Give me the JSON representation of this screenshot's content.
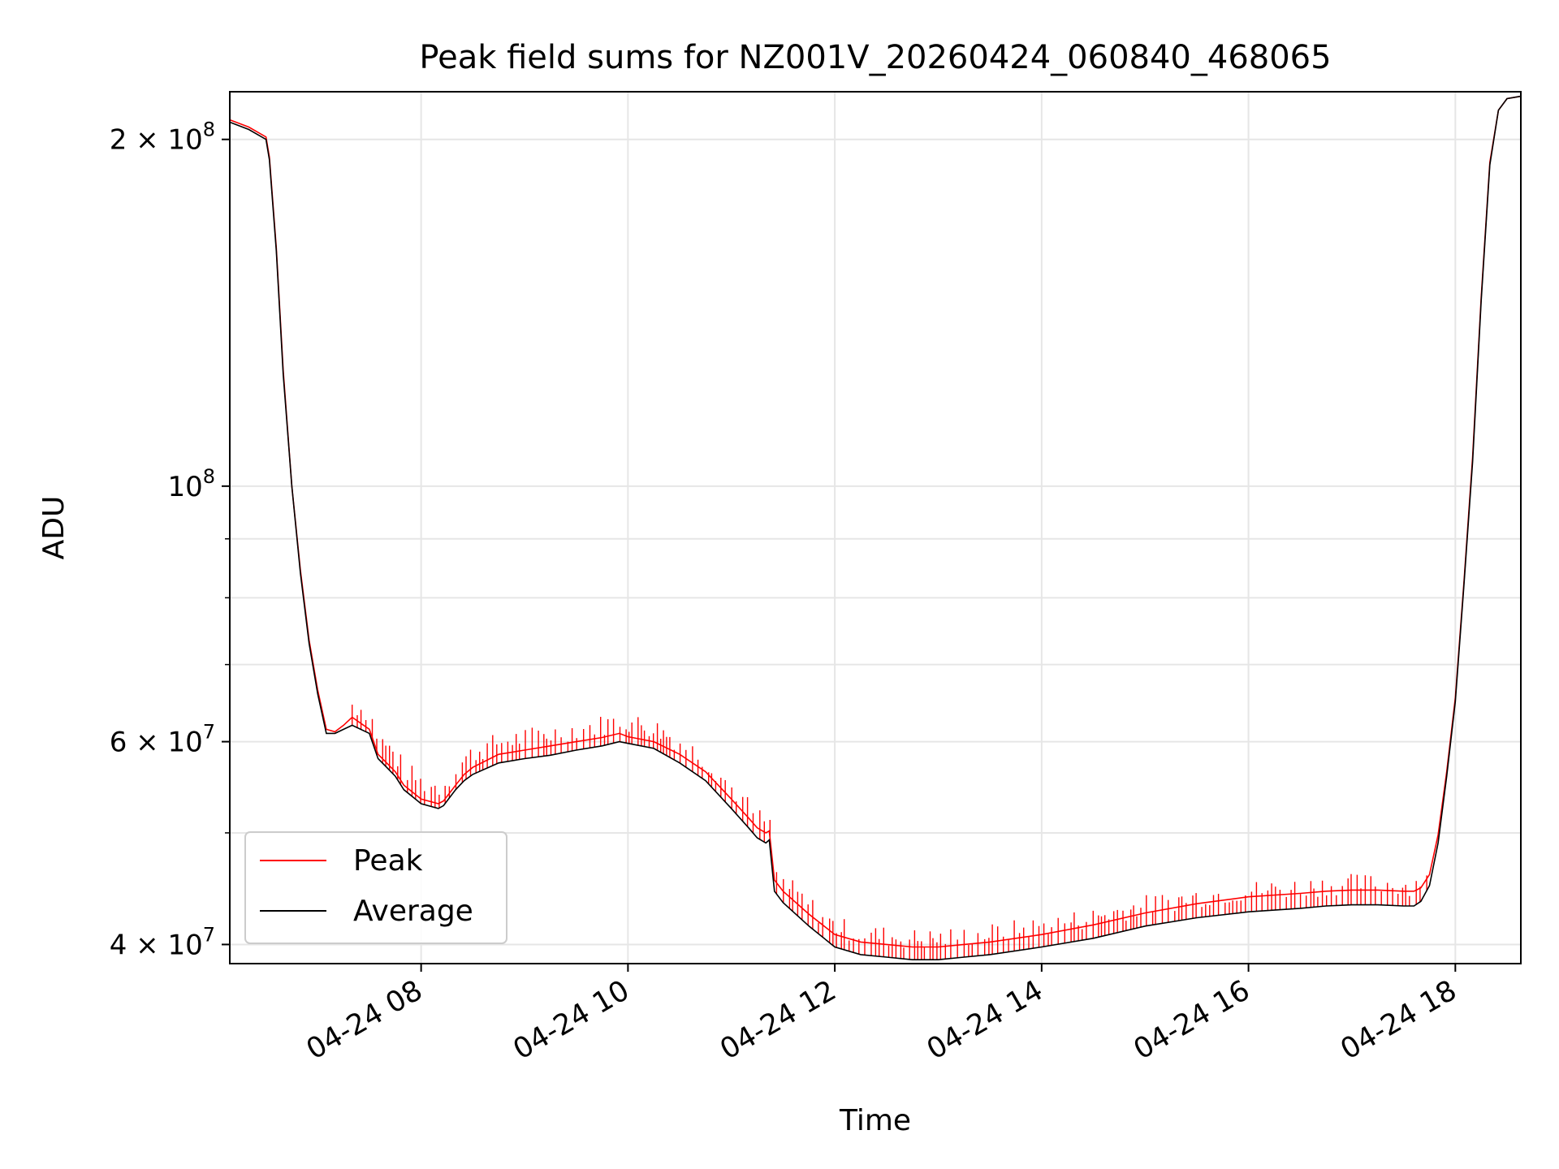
{
  "chart_data": {
    "type": "line",
    "title": "Peak field sums for NZ001V_20260424_060840_468065",
    "xlabel": "Time",
    "ylabel": "ADU",
    "yscale": "log",
    "xlim": [
      "2026-04-24 06:09",
      "2026-04-24 18:38"
    ],
    "ylim": [
      38500000,
      220000000
    ],
    "grid": true,
    "legend_position": "lower-left",
    "colors": {
      "peak": "#ff0000",
      "average": "#000000",
      "grid": "#e6e6e6"
    },
    "xticks": [
      "04-24 08",
      "04-24 10",
      "04-24 12",
      "04-24 14",
      "04-24 16",
      "04-24 18"
    ],
    "xtick_times": [
      "2026-04-24 08:00",
      "2026-04-24 10:00",
      "2026-04-24 12:00",
      "2026-04-24 14:00",
      "2026-04-24 16:00",
      "2026-04-24 18:00"
    ],
    "yticks": [
      {
        "value": 40000000,
        "label": "4 × 10",
        "exp": "7"
      },
      {
        "value": 60000000,
        "label": "6 × 10",
        "exp": "7"
      },
      {
        "value": 100000000,
        "label": "10",
        "exp": "8"
      },
      {
        "value": 200000000,
        "label": "2 × 10",
        "exp": "8"
      }
    ],
    "yminor_ticks": [
      50000000,
      70000000,
      80000000,
      90000000
    ],
    "series": [
      {
        "name": "Average",
        "x": [
          "06:09",
          "06:20",
          "06:30",
          "06:32",
          "06:36",
          "06:40",
          "06:45",
          "06:50",
          "06:55",
          "07:00",
          "07:05",
          "07:10",
          "07:15",
          "07:20",
          "07:30",
          "07:35",
          "07:40",
          "07:45",
          "07:50",
          "08:00",
          "08:10",
          "08:13",
          "08:20",
          "08:25",
          "08:30",
          "08:45",
          "09:00",
          "09:15",
          "09:30",
          "09:45",
          "09:55",
          "10:00",
          "10:15",
          "10:30",
          "10:45",
          "11:00",
          "11:10",
          "11:15",
          "11:20",
          "11:22",
          "11:24",
          "11:25",
          "11:30",
          "11:45",
          "12:00",
          "12:15",
          "12:30",
          "12:45",
          "13:00",
          "13:15",
          "13:30",
          "14:00",
          "14:30",
          "15:00",
          "15:30",
          "16:00",
          "16:30",
          "16:45",
          "17:00",
          "17:15",
          "17:30",
          "17:36",
          "17:40",
          "17:45",
          "17:50",
          "17:55",
          "18:00",
          "18:05",
          "18:10",
          "18:15",
          "18:20",
          "18:25",
          "18:30",
          "18:38"
        ],
        "y": [
          207000000.0,
          204000000.0,
          200000000.0,
          192000000.0,
          160000000.0,
          125000000.0,
          100000000.0,
          84000000.0,
          73000000.0,
          66000000.0,
          61000000.0,
          61000000.0,
          61500000.0,
          62000000.0,
          61000000.0,
          58000000.0,
          57000000.0,
          56000000.0,
          54500000.0,
          53000000.0,
          52500000.0,
          52800000.0,
          54500000.0,
          55500000.0,
          56200000.0,
          57500000.0,
          58000000.0,
          58400000.0,
          59000000.0,
          59500000.0,
          60000000.0,
          59800000.0,
          59200000.0,
          57500000.0,
          55500000.0,
          52500000.0,
          50500000.0,
          49500000.0,
          49000000.0,
          49300000.0,
          46000000.0,
          44500000.0,
          43500000.0,
          41500000.0,
          39800000.0,
          39200000.0,
          39000000.0,
          38800000.0,
          38800000.0,
          39000000.0,
          39200000.0,
          39800000.0,
          40500000.0,
          41500000.0,
          42200000.0,
          42700000.0,
          43000000.0,
          43200000.0,
          43300000.0,
          43300000.0,
          43200000.0,
          43200000.0,
          43600000.0,
          45000000.0,
          49000000.0,
          56000000.0,
          65000000.0,
          82000000.0,
          105000000.0,
          145000000.0,
          190000000.0,
          212000000.0,
          217000000.0,
          218000000.0
        ]
      },
      {
        "name": "Peak",
        "note_spikes": "upward spikes of ~3-6% above average between 07:20 and 17:45",
        "x": [
          "06:09",
          "06:20",
          "06:30",
          "06:32",
          "06:36",
          "06:40",
          "06:45",
          "06:50",
          "06:55",
          "07:00",
          "07:05",
          "07:10",
          "07:15",
          "07:20",
          "07:30",
          "07:35",
          "07:40",
          "07:45",
          "07:50",
          "08:00",
          "08:10",
          "08:13",
          "08:20",
          "08:25",
          "08:30",
          "08:45",
          "09:00",
          "09:15",
          "09:30",
          "09:45",
          "09:55",
          "10:00",
          "10:15",
          "10:30",
          "10:45",
          "11:00",
          "11:10",
          "11:15",
          "11:20",
          "11:22",
          "11:24",
          "11:25",
          "11:30",
          "11:45",
          "12:00",
          "12:15",
          "12:30",
          "12:45",
          "13:00",
          "13:15",
          "13:30",
          "14:00",
          "14:30",
          "15:00",
          "15:30",
          "16:00",
          "16:30",
          "16:45",
          "17:00",
          "17:15",
          "17:30",
          "17:36",
          "17:40",
          "17:45",
          "17:50",
          "17:55",
          "18:00",
          "18:05",
          "18:10",
          "18:15",
          "18:20",
          "18:25",
          "18:30",
          "18:38"
        ],
        "y": [
          208000000.0,
          205000000.0,
          201000000.0,
          193000000.0,
          161000000.0,
          126000000.0,
          100000000.0,
          84500000.0,
          73500000.0,
          66500000.0,
          61500000.0,
          61200000.0,
          62000000.0,
          63000000.0,
          61500000.0,
          58500000.0,
          57500000.0,
          56500000.0,
          55000000.0,
          53500000.0,
          53000000.0,
          53300000.0,
          55000000.0,
          56200000.0,
          57000000.0,
          58500000.0,
          59000000.0,
          59500000.0,
          60000000.0,
          60500000.0,
          61000000.0,
          60600000.0,
          60000000.0,
          58500000.0,
          56500000.0,
          53500000.0,
          51500000.0,
          50500000.0,
          50000000.0,
          50200000.0,
          47000000.0,
          45500000.0,
          44500000.0,
          42500000.0,
          40800000.0,
          40200000.0,
          40000000.0,
          39800000.0,
          39800000.0,
          40000000.0,
          40200000.0,
          40800000.0,
          41600000.0,
          42600000.0,
          43400000.0,
          44000000.0,
          44300000.0,
          44500000.0,
          44600000.0,
          44600000.0,
          44500000.0,
          44500000.0,
          44800000.0,
          46000000.0,
          49800000.0,
          56500000.0,
          65500000.0,
          82500000.0,
          106000000.0,
          146000000.0,
          191000000.0,
          212000000.0,
          217000000.0,
          218000000.0
        ]
      }
    ]
  }
}
